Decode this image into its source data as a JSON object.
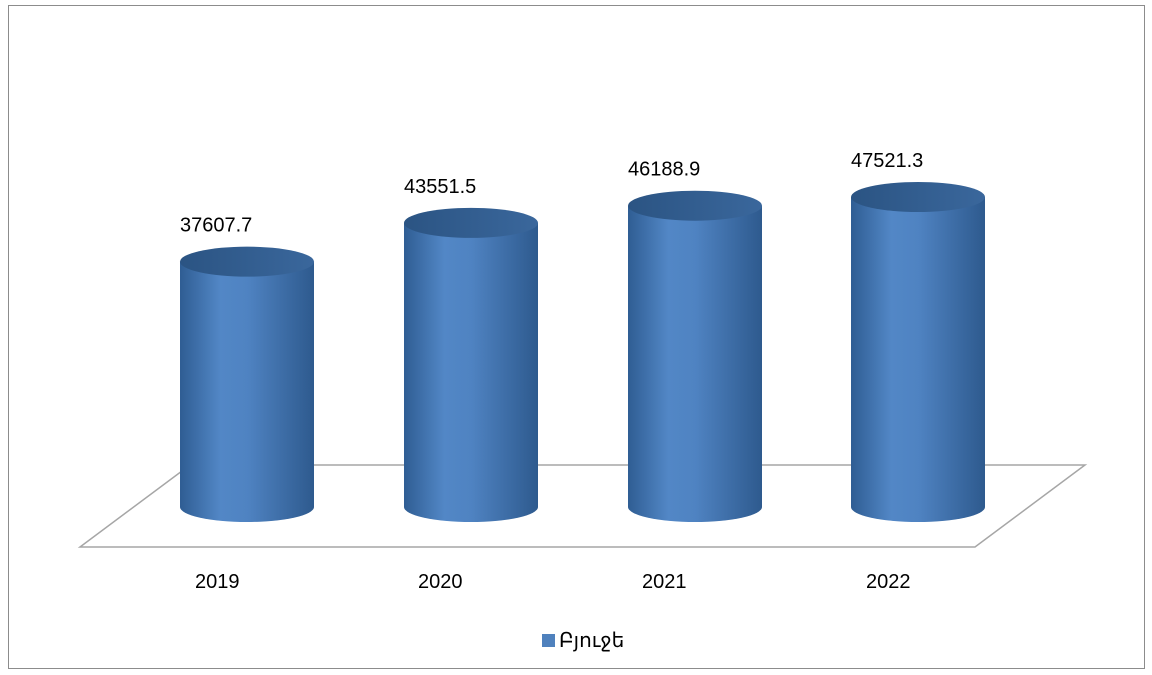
{
  "chart_data": {
    "type": "bar",
    "style": "3d-cylinder",
    "categories": [
      "2019",
      "2020",
      "2021",
      "2022"
    ],
    "series": [
      {
        "name": "Բյուջե",
        "values": [
          37607.7,
          43551.5,
          46188.9,
          47521.3
        ],
        "color": "#4f81bd"
      }
    ],
    "data_labels": [
      "37607.7",
      "43551.5",
      "46188.9",
      "47521.3"
    ],
    "title": "",
    "xlabel": "",
    "ylabel": "",
    "grid": false,
    "legend": "bottom"
  },
  "legend": {
    "label": "Բյուջե",
    "color": "#4f81bd"
  }
}
